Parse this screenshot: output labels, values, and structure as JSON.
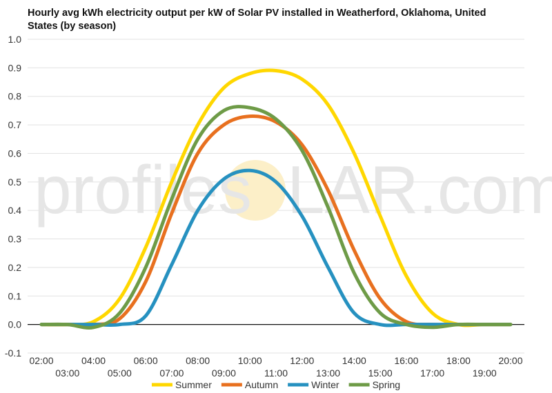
{
  "chart_data": {
    "type": "line",
    "title": "Hourly avg kWh electricity output per kW of Solar PV installed in Weatherford, Oklahoma, United States (by season)",
    "xlabel": "",
    "ylabel": "",
    "ylim": [
      -0.1,
      1.0
    ],
    "yticks": [
      "-0.1",
      "0.0",
      "0.1",
      "0.2",
      "0.3",
      "0.4",
      "0.5",
      "0.6",
      "0.7",
      "0.8",
      "0.9",
      "1.0"
    ],
    "x": [
      "02:00",
      "03:00",
      "04:00",
      "05:00",
      "06:00",
      "07:00",
      "08:00",
      "09:00",
      "10:00",
      "11:00",
      "12:00",
      "13:00",
      "14:00",
      "15:00",
      "16:00",
      "17:00",
      "18:00",
      "19:00",
      "20:00"
    ],
    "grid": true,
    "legend_position": "bottom",
    "watermark": {
      "left": "profiles",
      "right": "LAR.com"
    },
    "series": [
      {
        "name": "Summer",
        "color": "#FFD700",
        "values": [
          0.0,
          0.0,
          0.01,
          0.09,
          0.27,
          0.5,
          0.7,
          0.83,
          0.88,
          0.89,
          0.86,
          0.77,
          0.6,
          0.38,
          0.17,
          0.04,
          0.0,
          0.0,
          0.0
        ]
      },
      {
        "name": "Autumn",
        "color": "#E8701F",
        "values": [
          0.0,
          0.0,
          0.0,
          0.02,
          0.15,
          0.39,
          0.6,
          0.7,
          0.73,
          0.71,
          0.63,
          0.47,
          0.26,
          0.09,
          0.01,
          0.0,
          0.0,
          0.0,
          0.0
        ]
      },
      {
        "name": "Winter",
        "color": "#2691C0",
        "values": [
          0.0,
          0.0,
          0.0,
          0.0,
          0.03,
          0.21,
          0.4,
          0.51,
          0.54,
          0.5,
          0.38,
          0.2,
          0.04,
          0.0,
          0.0,
          0.0,
          0.0,
          0.0,
          0.0
        ]
      },
      {
        "name": "Spring",
        "color": "#6E9B47",
        "values": [
          0.0,
          0.0,
          -0.01,
          0.04,
          0.2,
          0.44,
          0.65,
          0.75,
          0.76,
          0.72,
          0.61,
          0.41,
          0.18,
          0.04,
          0.0,
          -0.01,
          0.0,
          0.0,
          0.0
        ]
      }
    ]
  }
}
